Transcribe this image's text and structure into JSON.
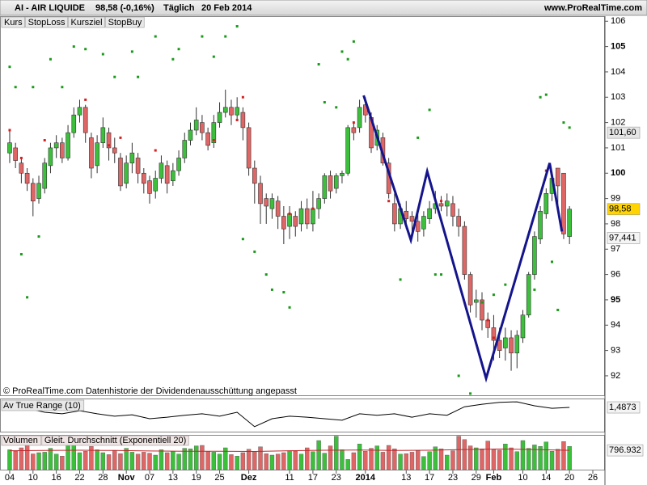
{
  "header": {
    "symbol": "AI - AIR LIQUIDE",
    "quote": "98,58 (-0,16%)",
    "period": "Täglich",
    "date": "20 Feb 2014",
    "site": "www.ProRealTime.com"
  },
  "chart_data": [
    {
      "type": "candlestick",
      "name": "Kurs",
      "note": "© ProRealTime.com Datenhistorie der Dividendenausschüttung angepasst",
      "legend": [
        {
          "label": "Kurs",
          "color": "#000000"
        },
        {
          "label": "StopLoss",
          "color": "#d42020"
        },
        {
          "label": "Kursziel",
          "color": "#1a8a1a"
        },
        {
          "label": "StopBuy",
          "color": "#000000"
        }
      ],
      "up_color": "#3cc03c",
      "down_color": "#e06666",
      "open": [
        100.8,
        101.0,
        100.4,
        100.0,
        99.6,
        99.0,
        99.4,
        100.3,
        101.0,
        101.2,
        100.6,
        101.6,
        102.3,
        102.6,
        101.4,
        100.3,
        101.2,
        101.6,
        101.0,
        100.6,
        99.6,
        100.4,
        100.6,
        100.0,
        99.7,
        99.3,
        99.8,
        100.3,
        99.7,
        100.1,
        100.6,
        101.3,
        101.7,
        102.0,
        101.6,
        101.2,
        102.0,
        102.4,
        102.6,
        102.3,
        102.4,
        101.8,
        100.2,
        99.6,
        99.0,
        98.6,
        98.9,
        98.3,
        97.9,
        98.3,
        98.0,
        98.6,
        98.0,
        98.6,
        99.0,
        99.9,
        99.4,
        99.9,
        100.0,
        101.8,
        101.8,
        102.7,
        102.2,
        101.1,
        101.4,
        100.4,
        98.8,
        98.0,
        98.5,
        98.3,
        98.1,
        97.8,
        98.2,
        98.6,
        98.8,
        98.7,
        98.8,
        98.3,
        97.9,
        96.0,
        94.9,
        95.0,
        94.2,
        93.9,
        93.4,
        93.1,
        93.5,
        92.9,
        93.5,
        94.4,
        96.0,
        97.4,
        98.4,
        99.2,
        100.2,
        100.0,
        97.5
      ],
      "high": [
        101.7,
        101.2,
        100.6,
        100.2,
        99.8,
        99.9,
        100.6,
        101.2,
        101.5,
        101.4,
        101.9,
        102.6,
        102.9,
        102.7,
        101.6,
        101.5,
        102.2,
        101.8,
        101.4,
        100.8,
        100.7,
        101.2,
        100.8,
        100.2,
        99.9,
        100.1,
        100.7,
        100.5,
        100.4,
        100.9,
        101.6,
        102.0,
        102.6,
        102.3,
        101.8,
        102.3,
        102.8,
        103.3,
        102.9,
        103.0,
        102.6,
        102.0,
        100.5,
        99.9,
        99.2,
        99.2,
        99.1,
        98.7,
        98.7,
        98.5,
        98.9,
        99.0,
        99.3,
        99.2,
        100.0,
        100.1,
        100.0,
        100.1,
        101.9,
        102.0,
        102.9,
        103.0,
        102.4,
        101.9,
        101.6,
        100.6,
        99.2,
        98.8,
        98.9,
        98.5,
        98.4,
        98.5,
        98.9,
        99.3,
        99.1,
        99.2,
        99.1,
        98.6,
        98.1,
        96.1,
        95.4,
        95.3,
        94.5,
        94.4,
        93.9,
        93.9,
        93.8,
        93.8,
        94.6,
        96.1,
        97.7,
        98.7,
        99.4,
        100.0,
        100.2,
        100.0,
        98.7
      ],
      "low": [
        100.4,
        100.2,
        99.6,
        99.3,
        98.3,
        98.8,
        99.2,
        100.0,
        100.6,
        100.4,
        100.5,
        101.4,
        102.0,
        101.2,
        99.8,
        100.0,
        101.0,
        100.5,
        100.4,
        99.3,
        99.4,
        100.0,
        99.6,
        99.2,
        98.8,
        99.0,
        99.6,
        99.2,
        99.5,
        99.9,
        100.4,
        101.1,
        101.5,
        101.3,
        100.9,
        101.0,
        101.8,
        102.2,
        101.9,
        102.1,
        101.3,
        99.9,
        98.8,
        98.0,
        98.0,
        98.2,
        97.8,
        97.2,
        97.4,
        97.5,
        97.7,
        97.8,
        97.7,
        98.2,
        98.8,
        99.0,
        99.2,
        99.6,
        99.9,
        101.3,
        101.6,
        102.0,
        100.8,
        100.9,
        100.3,
        99.0,
        97.7,
        97.8,
        97.8,
        97.6,
        97.3,
        97.5,
        98.0,
        98.4,
        98.5,
        98.3,
        97.9,
        97.5,
        95.8,
        94.5,
        94.3,
        93.8,
        93.5,
        92.6,
        92.7,
        92.6,
        92.2,
        92.3,
        93.3,
        94.3,
        95.8,
        97.2,
        98.2,
        98.9,
        98.5,
        97.4,
        97.2
      ],
      "close": [
        101.2,
        100.5,
        100.0,
        99.6,
        98.9,
        99.6,
        100.4,
        101.0,
        101.2,
        100.6,
        101.6,
        102.3,
        102.6,
        101.6,
        100.2,
        101.2,
        101.8,
        101.0,
        100.8,
        99.5,
        100.4,
        100.8,
        100.0,
        99.6,
        99.2,
        99.8,
        100.4,
        99.6,
        100.1,
        100.6,
        101.3,
        101.7,
        102.1,
        101.6,
        101.1,
        102.0,
        102.4,
        102.6,
        102.3,
        102.6,
        101.8,
        100.2,
        99.6,
        98.8,
        98.7,
        99.0,
        98.3,
        97.8,
        98.4,
        97.9,
        98.6,
        98.0,
        98.6,
        99.0,
        99.9,
        99.3,
        99.9,
        100.0,
        101.8,
        101.6,
        102.6,
        102.3,
        101.0,
        101.7,
        100.4,
        99.2,
        98.0,
        98.6,
        98.2,
        98.1,
        97.7,
        98.3,
        98.6,
        98.8,
        98.7,
        98.9,
        98.3,
        97.9,
        96.0,
        94.8,
        95.0,
        94.2,
        93.9,
        93.4,
        93.0,
        93.5,
        92.9,
        93.6,
        94.4,
        96.0,
        97.5,
        98.5,
        99.2,
        99.8,
        99.5,
        97.6,
        98.58
      ],
      "series": [
        {
          "name": "Kursziel",
          "color": "#1a9a1a",
          "x": [
            0,
            1,
            4,
            2,
            3,
            5,
            7,
            9,
            11,
            13,
            16,
            18,
            21,
            22,
            25,
            28,
            29,
            33,
            35,
            37,
            39,
            40,
            42,
            44,
            45,
            47,
            48,
            53,
            54,
            56,
            57,
            58,
            59,
            67,
            70,
            72,
            73,
            74,
            77,
            79,
            81,
            83,
            85,
            90,
            91,
            92,
            93,
            94,
            95,
            96
          ],
          "values": [
            104.2,
            103.4,
            103.4,
            96.8,
            95.1,
            97.5,
            104.5,
            103.4,
            105.0,
            104.9,
            104.7,
            103.8,
            104.8,
            103.8,
            105.4,
            104.5,
            104.9,
            105.4,
            104.6,
            105.4,
            105.8,
            97.4,
            96.9,
            96.0,
            95.4,
            95.3,
            94.7,
            104.3,
            102.8,
            102.6,
            104.8,
            104.5,
            105.2,
            95.8,
            101.4,
            102.5,
            96.0,
            96.0,
            92.0,
            91.3,
            94.9,
            95.2,
            95.6,
            95.4,
            103.0,
            103.1,
            96.5,
            94.6,
            102.0,
            101.8
          ]
        },
        {
          "name": "StopLoss",
          "color": "#d42020",
          "x": [
            0,
            2,
            6,
            13,
            17,
            19,
            25,
            35,
            39,
            40,
            48,
            52,
            59,
            65,
            74,
            82,
            83,
            92
          ],
          "values": [
            101.7,
            100.6,
            101.3,
            102.9,
            101.1,
            101.4,
            100.9,
            101.3,
            102.1,
            103.0,
            98.4,
            98.6,
            102.0,
            98.9,
            98.9,
            94.2,
            93.5,
            100.1
          ]
        }
      ],
      "trendline": {
        "color": "#14148c",
        "x": [
          60.7,
          68.8,
          71.6,
          81.7,
          92.6,
          94.7
        ],
        "values": [
          103.07,
          97.36,
          100.07,
          91.9,
          100.4,
          97.7
        ]
      },
      "price_labels": [
        {
          "value": 101.6,
          "label": "101,60",
          "bg": "#e6e6e6",
          "color": "#2a7a2a"
        },
        {
          "value": 98.58,
          "label": "98,58",
          "bg": "#ffd400",
          "color": "#000000"
        },
        {
          "value": 97.441,
          "label": "97,441",
          "bg": "#f4f4f4",
          "color": "#d42020"
        }
      ],
      "xlim": [
        -1.66,
        102.08
      ],
      "ylim": [
        91.2,
        106.2
      ],
      "yticks": [
        92,
        93,
        94,
        95,
        96,
        97,
        98,
        99,
        100,
        101,
        102,
        103,
        104,
        105,
        106
      ],
      "xticks": [
        {
          "value": 0,
          "label": "04"
        },
        {
          "value": 4,
          "label": "10"
        },
        {
          "value": 8,
          "label": "16"
        },
        {
          "value": 12,
          "label": "22"
        },
        {
          "value": 16,
          "label": "28"
        },
        {
          "value": 20,
          "label": "Nov"
        },
        {
          "value": 24,
          "label": "07"
        },
        {
          "value": 28,
          "label": "13"
        },
        {
          "value": 32,
          "label": "19"
        },
        {
          "value": 36,
          "label": "25"
        },
        {
          "value": 41,
          "label": "Dez"
        },
        {
          "value": 48,
          "label": "11"
        },
        {
          "value": 52,
          "label": "17"
        },
        {
          "value": 56,
          "label": "23"
        },
        {
          "value": 61,
          "label": "2014"
        },
        {
          "value": 68,
          "label": "13"
        },
        {
          "value": 72,
          "label": "17"
        },
        {
          "value": 76,
          "label": "23"
        },
        {
          "value": 80,
          "label": "29"
        },
        {
          "value": 83,
          "label": "Feb"
        },
        {
          "value": 88,
          "label": "10"
        },
        {
          "value": 92,
          "label": "14"
        },
        {
          "value": 96,
          "label": "20"
        },
        {
          "value": 100,
          "label": "26"
        }
      ],
      "bold_xticks": [
        "Nov",
        "Dez",
        "2014",
        "Feb"
      ]
    },
    {
      "type": "line",
      "title": "Av True Range (10)",
      "color": "#000000",
      "x": [
        0,
        3,
        6,
        9,
        12,
        15,
        18,
        21,
        24,
        27,
        30,
        33,
        36,
        39,
        42,
        45,
        48,
        51,
        54,
        57,
        60,
        63,
        66,
        69,
        72,
        75,
        78,
        81,
        84,
        87,
        90,
        93,
        96
      ],
      "values": [
        1.47,
        1.47,
        1.39,
        1.36,
        1.42,
        1.36,
        1.31,
        1.34,
        1.26,
        1.29,
        1.33,
        1.36,
        1.31,
        1.39,
        1.1,
        1.26,
        1.31,
        1.29,
        1.26,
        1.23,
        1.36,
        1.33,
        1.36,
        1.29,
        1.36,
        1.33,
        1.5,
        1.55,
        1.59,
        1.6,
        1.52,
        1.47,
        1.4873
      ],
      "ylim": [
        1.0,
        1.65
      ],
      "value_label": {
        "value": 1.4873,
        "label": "1,4873"
      }
    },
    {
      "type": "bar",
      "title": "Volumen",
      "ma_title": "Gleit. Durchschnitt (Exponentiell 20)",
      "ma_color": "#c0262b",
      "values": [
        820000,
        760000,
        900000,
        1010000,
        650000,
        700000,
        720000,
        880000,
        640000,
        560000,
        980000,
        1100000,
        700000,
        760000,
        960000,
        820000,
        700000,
        620000,
        780000,
        660000,
        880000,
        720000,
        640000,
        720000,
        680000,
        600000,
        820000,
        700000,
        760000,
        640000,
        880000,
        860000,
        980000,
        1000000,
        760000,
        720000,
        640000,
        900000,
        620000,
        560000,
        700000,
        840000,
        760000,
        940000,
        660000,
        600000,
        640000,
        700000,
        780000,
        760000,
        640000,
        900000,
        740000,
        1200000,
        680000,
        980000,
        1380000,
        820000,
        420000,
        700000,
        1060000,
        760000,
        880000,
        980000,
        720000,
        1000000,
        860000,
        640000,
        660000,
        720000,
        780000,
        540000,
        740000,
        940000,
        860000,
        600000,
        780000,
        1380000,
        1240000,
        980000,
        900000,
        860000,
        1180000,
        820000,
        800000,
        1060000,
        900000,
        740000,
        1200000,
        880000,
        1020000,
        960000,
        1140000,
        760000,
        840000,
        1160000,
        960000
      ],
      "ma_x": [
        0,
        6,
        12,
        18,
        24,
        30,
        36,
        42,
        48,
        54,
        60,
        66,
        72,
        78,
        84,
        90,
        96
      ],
      "ma_values": [
        780000,
        790000,
        800000,
        790000,
        770000,
        760000,
        760000,
        750000,
        780000,
        800000,
        810000,
        790000,
        800000,
        830000,
        850000,
        830000,
        796932
      ],
      "ylim": [
        0,
        1400000
      ],
      "value_label": {
        "value": 796932,
        "label": "796.932"
      }
    }
  ]
}
